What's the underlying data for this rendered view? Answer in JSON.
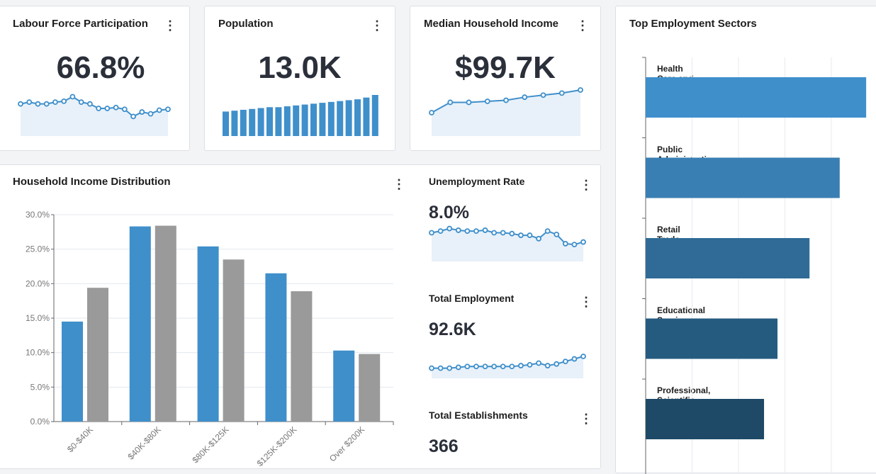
{
  "kpis": [
    {
      "title": "Labour Force Participation",
      "value": "66.8%",
      "spark": {
        "type": "line",
        "values": [
          50,
          52,
          50,
          50,
          52,
          53,
          58,
          52,
          50,
          45,
          45,
          46,
          44,
          36,
          41,
          39,
          43,
          44
        ]
      }
    },
    {
      "title": "Population",
      "value": "13.0K",
      "spark": {
        "type": "bar",
        "values": [
          28,
          29,
          30,
          31,
          32,
          33,
          33,
          34,
          35,
          36,
          37,
          38,
          39,
          40,
          41,
          42,
          44,
          47
        ]
      }
    },
    {
      "title": "Median Household Income",
      "value": "$99.7K",
      "spark": {
        "type": "curve",
        "values": [
          20,
          30,
          30,
          31,
          32,
          35,
          37,
          39,
          42
        ]
      }
    }
  ],
  "income_distribution": {
    "title": "Household Income Distribution",
    "chart_data": {
      "type": "bar",
      "categories": [
        "$0-$40K",
        "$40K-$80K",
        "$80K-$125K",
        "$125K-$200K",
        "Over $200K"
      ],
      "series": [
        {
          "values": [
            14.5,
            28.3,
            25.4,
            21.5,
            10.3
          ],
          "color": "#3f8fcb"
        },
        {
          "values": [
            19.4,
            28.4,
            23.5,
            18.9,
            9.8
          ],
          "color": "#9a9a9a"
        }
      ],
      "yticks": [
        "0.0%",
        "5.0%",
        "10.0%",
        "15.0%",
        "20.0%",
        "25.0%",
        "30.0%"
      ],
      "ylim": [
        0,
        30
      ],
      "grid": true
    }
  },
  "small_kpis": [
    {
      "title": "Unemployment Rate",
      "value": "8.0%",
      "spark": [
        52,
        54,
        57,
        55,
        54,
        54,
        55,
        52,
        52,
        51,
        49,
        49,
        45,
        54,
        50,
        39,
        38,
        41
      ]
    },
    {
      "title": "Total Employment",
      "value": "92.6K",
      "spark": [
        30,
        30,
        30,
        31,
        32,
        32,
        32,
        32,
        32,
        32,
        33,
        34,
        36,
        33,
        35,
        38,
        41,
        44
      ]
    },
    {
      "title": "Total Establishments",
      "value": "366"
    }
  ],
  "sectors": {
    "title": "Top Employment Sectors",
    "chart_data": {
      "type": "bar",
      "orientation": "horizontal",
      "categories": [
        "Health Care and Social Assistance",
        "Public Administration",
        "Retail Trade",
        "Educational Services",
        "Professional, Scientific and Technical services"
      ],
      "values": [
        4.75,
        4.18,
        3.53,
        2.84,
        2.55
      ],
      "colors": [
        "#3f8fcb",
        "#3a7fb3",
        "#2f6b96",
        "#265b80",
        "#1e4a68"
      ],
      "grid": true
    }
  },
  "menu_icon": "kebab-vertical-icon"
}
